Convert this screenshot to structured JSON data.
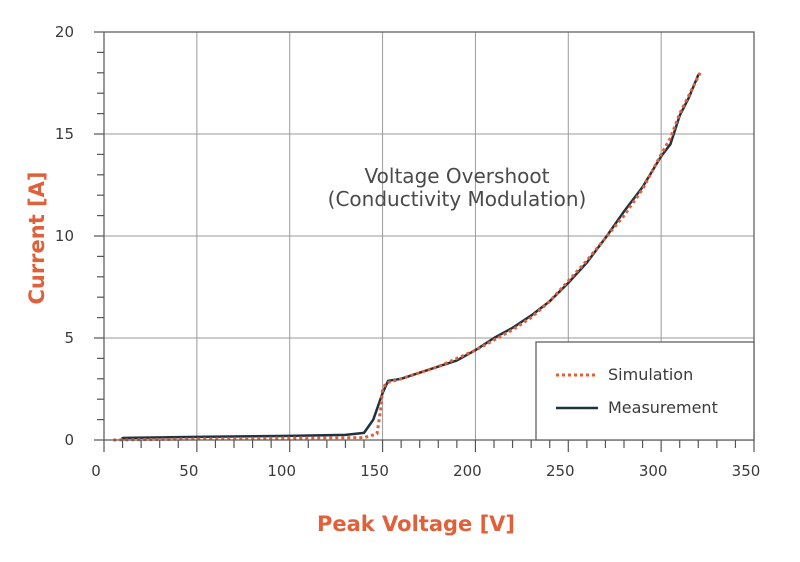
{
  "chart_data": {
    "type": "line",
    "title": "",
    "annotation": [
      "Voltage Overshoot",
      "(Conductivity Modulation)"
    ],
    "xlabel": "Peak Voltage [V]",
    "ylabel": "Current [A]",
    "xlim": [
      0,
      350
    ],
    "ylim": [
      0,
      20
    ],
    "x_ticks": [
      0,
      50,
      100,
      150,
      200,
      250,
      300,
      350
    ],
    "y_ticks": [
      0,
      5,
      10,
      15,
      20
    ],
    "grid": true,
    "legend_position": "bottom-right",
    "series": [
      {
        "name": "Simulation",
        "style": "dotted",
        "color": "#e0603a",
        "points": [
          [
            5,
            0.0
          ],
          [
            50,
            0.05
          ],
          [
            100,
            0.1
          ],
          [
            140,
            0.12
          ],
          [
            147,
            0.3
          ],
          [
            149,
            1.5
          ],
          [
            150,
            2.5
          ],
          [
            152,
            2.8
          ],
          [
            160,
            3.0
          ],
          [
            170,
            3.3
          ],
          [
            180,
            3.6
          ],
          [
            190,
            4.0
          ],
          [
            200,
            4.4
          ],
          [
            210,
            4.9
          ],
          [
            220,
            5.4
          ],
          [
            230,
            6.0
          ],
          [
            240,
            6.8
          ],
          [
            250,
            7.8
          ],
          [
            260,
            8.8
          ],
          [
            270,
            9.9
          ],
          [
            280,
            11.0
          ],
          [
            290,
            12.3
          ],
          [
            300,
            14.0
          ],
          [
            305,
            14.8
          ],
          [
            310,
            16.0
          ],
          [
            315,
            16.9
          ],
          [
            321,
            18.0
          ]
        ]
      },
      {
        "name": "Measurement",
        "style": "solid",
        "color": "#1f3240",
        "points": [
          [
            10,
            0.1
          ],
          [
            50,
            0.15
          ],
          [
            100,
            0.2
          ],
          [
            130,
            0.25
          ],
          [
            140,
            0.35
          ],
          [
            145,
            1.0
          ],
          [
            150,
            2.3
          ],
          [
            153,
            2.9
          ],
          [
            160,
            3.0
          ],
          [
            170,
            3.3
          ],
          [
            180,
            3.6
          ],
          [
            190,
            3.9
          ],
          [
            200,
            4.4
          ],
          [
            210,
            5.0
          ],
          [
            220,
            5.5
          ],
          [
            230,
            6.1
          ],
          [
            240,
            6.8
          ],
          [
            250,
            7.7
          ],
          [
            260,
            8.7
          ],
          [
            270,
            9.9
          ],
          [
            280,
            11.2
          ],
          [
            290,
            12.4
          ],
          [
            300,
            13.9
          ],
          [
            305,
            14.5
          ],
          [
            310,
            15.9
          ],
          [
            315,
            16.8
          ],
          [
            320,
            17.9
          ]
        ]
      }
    ]
  }
}
